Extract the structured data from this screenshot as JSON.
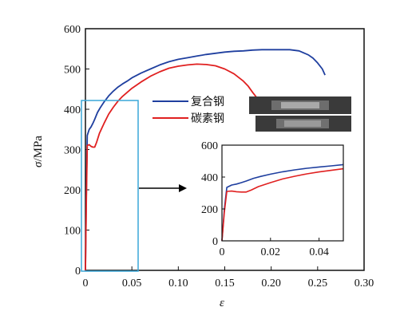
{
  "chart_data": {
    "type": "line",
    "xlabel": "ε",
    "ylabel_symbol": "σ",
    "ylabel_unit": "/MPa",
    "xlim": [
      0,
      0.3
    ],
    "ylim": [
      0,
      600
    ],
    "xticks": [
      "0",
      "0.05",
      "0.10",
      "0.15",
      "0.20",
      "0.25",
      "0.30"
    ],
    "yticks": [
      "0",
      "100",
      "200",
      "300",
      "400",
      "500",
      "600"
    ],
    "grid": false,
    "legend": "center-right",
    "series": [
      {
        "name": "复合钢",
        "color": "#1f3f9f",
        "x": [
          0,
          0.001,
          0.002,
          0.004,
          0.006,
          0.008,
          0.01,
          0.013,
          0.016,
          0.02,
          0.025,
          0.03,
          0.035,
          0.04,
          0.045,
          0.05,
          0.06,
          0.07,
          0.08,
          0.09,
          0.1,
          0.11,
          0.12,
          0.13,
          0.14,
          0.15,
          0.16,
          0.17,
          0.18,
          0.19,
          0.2,
          0.21,
          0.22,
          0.23,
          0.24,
          0.245,
          0.25,
          0.255,
          0.258
        ],
        "y": [
          0,
          200,
          335,
          350,
          356,
          365,
          375,
          392,
          404,
          418,
          433,
          445,
          455,
          463,
          470,
          478,
          490,
          500,
          510,
          518,
          524,
          528,
          532,
          536,
          539,
          542,
          544,
          545,
          547,
          548,
          548,
          548,
          548,
          545,
          535,
          527,
          515,
          500,
          485
        ]
      },
      {
        "name": "碳素钢",
        "color": "#e02020",
        "x": [
          0,
          0.001,
          0.002,
          0.004,
          0.006,
          0.008,
          0.01,
          0.012,
          0.015,
          0.02,
          0.025,
          0.03,
          0.035,
          0.04,
          0.05,
          0.06,
          0.07,
          0.08,
          0.09,
          0.1,
          0.11,
          0.12,
          0.13,
          0.14,
          0.15,
          0.16,
          0.17,
          0.175,
          0.18,
          0.184
        ],
        "y": [
          0,
          180,
          310,
          312,
          308,
          306,
          306,
          318,
          340,
          365,
          388,
          405,
          420,
          432,
          452,
          468,
          482,
          493,
          502,
          507,
          510,
          512,
          511,
          508,
          500,
          488,
          470,
          458,
          442,
          430
        ]
      }
    ],
    "inset": {
      "xlim": [
        0,
        0.05
      ],
      "ylim": [
        0,
        600
      ],
      "xticks": [
        "0",
        "0.02",
        "0.04"
      ],
      "yticks": [
        "0",
        "200",
        "400",
        "600"
      ]
    },
    "zoom_box_color": "#3aa7d8",
    "arrow_color": "#000000",
    "specimen_photos": 2
  }
}
